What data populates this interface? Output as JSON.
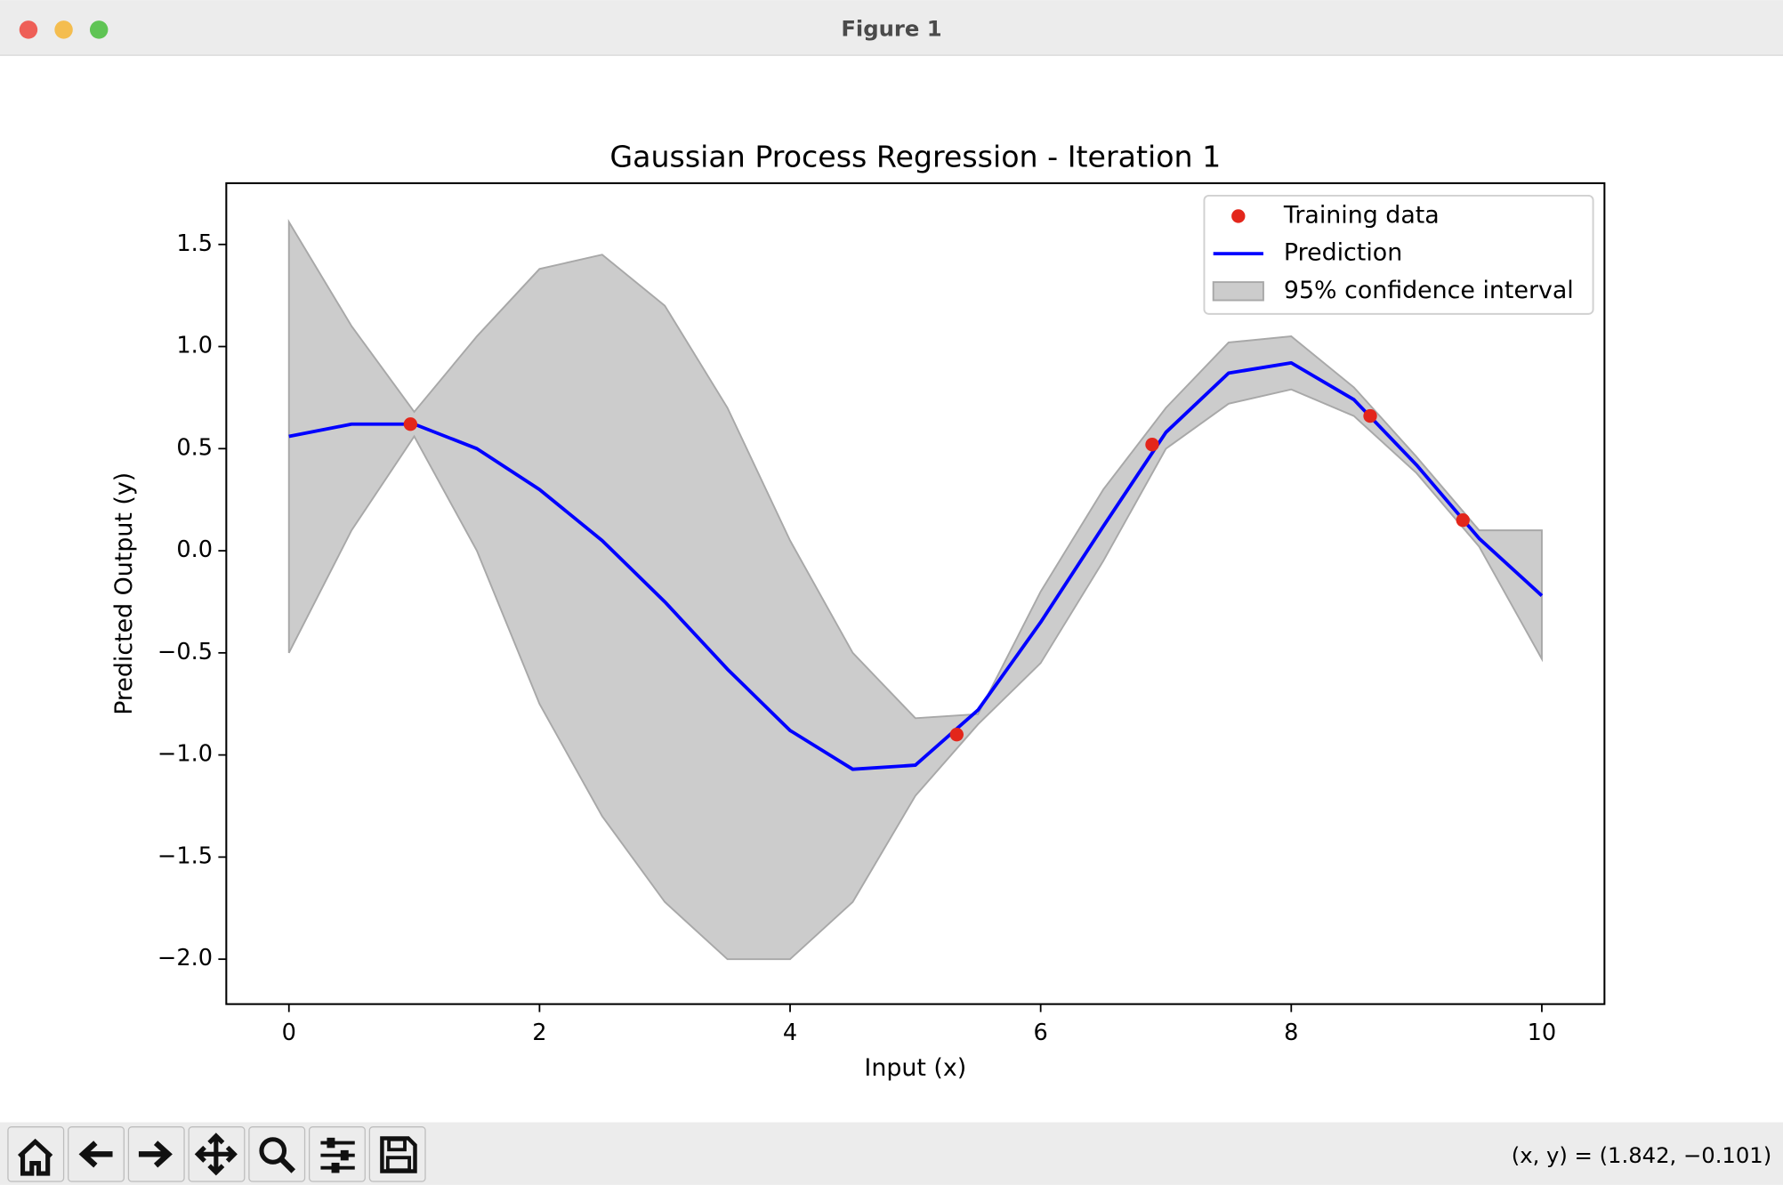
{
  "window": {
    "title": "Figure 1",
    "status": "(x, y) = (1.842, −0.101)"
  },
  "chart_data": {
    "type": "line",
    "title": "Gaussian Process Regression - Iteration 1",
    "x_label": "Input (x)",
    "y_label": "Predicted Output (y)",
    "xlim": [
      -0.5,
      10.5
    ],
    "ylim": [
      -2.22,
      1.8
    ],
    "xticks": [
      0,
      2,
      4,
      6,
      8,
      10
    ],
    "yticks": [
      {
        "value": -2.0,
        "label": "−2.0"
      },
      {
        "value": -1.5,
        "label": "−1.5"
      },
      {
        "value": -1.0,
        "label": "−1.0"
      },
      {
        "value": -0.5,
        "label": "−0.5"
      },
      {
        "value": 0.0,
        "label": "0.0"
      },
      0.5,
      {
        "value": 1.0,
        "label": "1.0"
      },
      1.5
    ],
    "legend": "upper right",
    "x": [
      0,
      0.5,
      1,
      1.5,
      2,
      2.5,
      3,
      3.5,
      4,
      4.5,
      5,
      5.5,
      6,
      6.5,
      7,
      7.5,
      8,
      8.5,
      9,
      9.5,
      10
    ],
    "series": [
      {
        "name": "Training data",
        "type": "scatter",
        "color": "#e3261b",
        "x": [
          0.97,
          5.33,
          6.89,
          8.63,
          9.37
        ],
        "values": [
          0.62,
          -0.9,
          0.52,
          0.66,
          0.15
        ]
      },
      {
        "name": "Prediction",
        "type": "line",
        "color": "#0000ff",
        "values": [
          0.56,
          0.62,
          0.62,
          0.5,
          0.3,
          0.05,
          -0.25,
          -0.58,
          -0.88,
          -1.07,
          -1.05,
          -0.78,
          -0.35,
          0.12,
          0.58,
          0.87,
          0.92,
          0.74,
          0.42,
          0.06,
          -0.22
        ]
      },
      {
        "name": "95% confidence interval",
        "type": "band",
        "color": "#cccccc",
        "upper": [
          1.61,
          1.1,
          0.68,
          1.05,
          1.38,
          1.45,
          1.2,
          0.7,
          0.05,
          -0.5,
          -0.82,
          -0.8,
          -0.2,
          0.3,
          0.7,
          1.02,
          1.05,
          0.8,
          0.46,
          0.1,
          0.1
        ],
        "lower": [
          -0.5,
          0.1,
          0.56,
          0.0,
          -0.75,
          -1.3,
          -1.72,
          -2.0,
          -2.0,
          -1.72,
          -1.2,
          -0.85,
          -0.55,
          -0.05,
          0.5,
          0.72,
          0.79,
          0.66,
          0.38,
          0.02,
          -0.53
        ]
      }
    ]
  }
}
